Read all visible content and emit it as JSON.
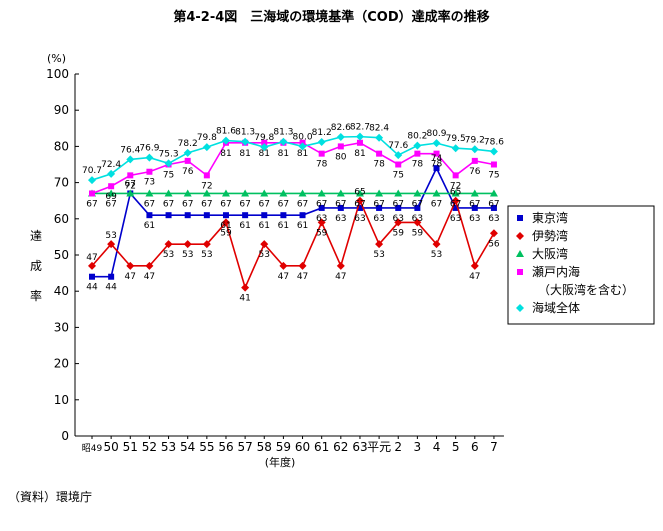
{
  "title": "第4-2-4図　三海域の環境基準（COD）達成率の推移",
  "source": "（資料）環境庁",
  "chart_data": {
    "type": "line",
    "y_unit": "(%)",
    "ylabel": "達成率",
    "xlabel": "(年度)",
    "ylim": [
      0,
      100
    ],
    "yticks": [
      0,
      10,
      20,
      30,
      40,
      50,
      60,
      70,
      80,
      90,
      100
    ],
    "grid": false,
    "legend_position": "right",
    "categories": [
      "昭49",
      "50",
      "51",
      "52",
      "53",
      "54",
      "55",
      "56",
      "57",
      "58",
      "59",
      "60",
      "61",
      "62",
      "63",
      "平元",
      "2",
      "3",
      "4",
      "5",
      "6",
      "7"
    ],
    "series": [
      {
        "name": "東京湾",
        "color": "#0000cc",
        "marker": "square",
        "values": [
          44,
          44,
          67,
          61,
          61,
          61,
          61,
          61,
          61,
          61,
          61,
          61,
          63,
          63,
          63,
          63,
          63,
          63,
          74,
          63,
          63,
          63
        ]
      },
      {
        "name": "伊勢湾",
        "color": "#e00000",
        "marker": "diamond",
        "values": [
          47,
          53,
          47,
          47,
          53,
          53,
          53,
          59,
          41,
          53,
          47,
          47,
          59,
          47,
          65,
          53,
          59,
          59,
          53,
          65,
          47,
          56
        ]
      },
      {
        "name": "大阪湾",
        "color": "#00c060",
        "marker": "triangle",
        "values": [
          67,
          67,
          67,
          67,
          67,
          67,
          67,
          67,
          67,
          67,
          67,
          67,
          67,
          67,
          67,
          67,
          67,
          67,
          67,
          67,
          67,
          67
        ]
      },
      {
        "name": "瀬戸内海",
        "name_line2": "（大阪湾を含む）",
        "color": "#ff00ff",
        "marker": "square",
        "values": [
          67,
          69,
          72,
          73,
          75,
          76,
          72,
          81,
          81,
          81,
          81,
          81,
          78,
          80,
          81,
          78,
          75,
          78,
          78,
          72,
          76,
          75
        ]
      },
      {
        "name": "海域全体",
        "color": "#00e0e0",
        "marker": "diamond",
        "values": [
          70.7,
          72.4,
          76.4,
          76.9,
          75.3,
          78.2,
          79.8,
          81.6,
          81.3,
          79.8,
          81.3,
          80.0,
          81.2,
          82.6,
          82.7,
          82.4,
          77.6,
          80.2,
          80.9,
          79.5,
          79.2,
          78.6
        ]
      }
    ],
    "data_labels": {
      "海域全体": [
        "70.7",
        "72.4",
        "76.4",
        "76.9",
        "75.3",
        "78.2",
        "79.8",
        "81.6",
        "81.3",
        "79.8",
        "81.3",
        "80.0",
        "81.2",
        "82.6",
        "82.7",
        "82.4",
        "77.6",
        "80.2",
        "80.9",
        "79.5",
        "79.2",
        "78.6"
      ],
      "瀬戸内海": [
        "",
        "69",
        "72",
        "73",
        "75",
        "76",
        "72",
        "81",
        "81",
        "81",
        "81",
        "81",
        "78",
        "80",
        "81",
        "78",
        "75",
        "78",
        "78",
        "72",
        "76",
        "75"
      ],
      "大阪湾": [
        "67",
        "67",
        "",
        "67",
        "67",
        "67",
        "67",
        "67",
        "67",
        "67",
        "67",
        "67",
        "67",
        "67",
        "67",
        "67",
        "67",
        "67",
        "67",
        "67",
        "67",
        "67"
      ],
      "東京湾": [
        "44",
        "44",
        "67",
        "61",
        "",
        "",
        "",
        "61",
        "61",
        "61",
        "61",
        "61",
        "63",
        "63",
        "63",
        "63",
        "63",
        "63",
        "74",
        "63",
        "63",
        "63"
      ],
      "伊勢湾": [
        "47",
        "53",
        "47",
        "47",
        "53",
        "53",
        "53",
        "59",
        "41",
        "53",
        "47",
        "47",
        "59",
        "47",
        "65",
        "53",
        "59",
        "59",
        "53",
        "65",
        "47",
        "56"
      ]
    }
  }
}
